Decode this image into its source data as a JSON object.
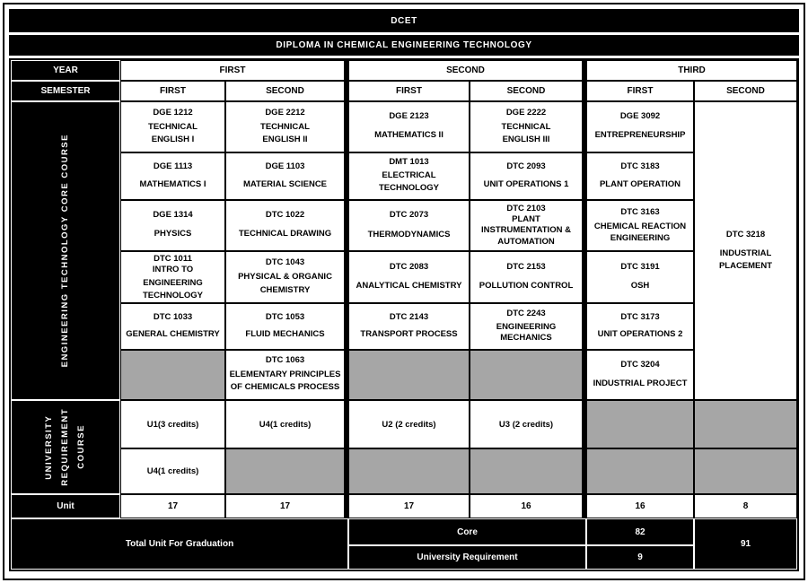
{
  "titles": {
    "code": "DCET",
    "program": "DIPLOMA IN CHEMICAL ENGINEERING TECHNOLOGY"
  },
  "headers": {
    "year_label": "YEAR",
    "semester_label": "SEMESTER",
    "years": [
      "FIRST",
      "SECOND",
      "THIRD"
    ],
    "semesters": [
      "FIRST",
      "SECOND",
      "FIRST",
      "SECOND",
      "FIRST",
      "SECOND"
    ]
  },
  "sections": {
    "core_label": "ENGINEERING TECHNOLOGY CORE COURSE",
    "university_label": "UNIVERSITY\nREQUIREMENT\nCOURSE"
  },
  "courses": {
    "y1s1": [
      {
        "code": "DGE 1212",
        "name": "TECHNICAL\nENGLISH I"
      },
      {
        "code": "DGE 1113",
        "name": "MATHEMATICS I"
      },
      {
        "code": "DGE 1314",
        "name": "PHYSICS"
      },
      {
        "code": "DTC 1011",
        "name": "INTRO TO\nENGINEERING\nTECHNOLOGY"
      },
      {
        "code": "DTC 1033",
        "name": "GENERAL CHEMISTRY"
      }
    ],
    "y1s2": [
      {
        "code": "DGE 2212",
        "name": "TECHNICAL\nENGLISH II"
      },
      {
        "code": "DGE 1103",
        "name": "MATERIAL SCIENCE"
      },
      {
        "code": "DTC 1022",
        "name": "TECHNICAL DRAWING"
      },
      {
        "code": "DTC 1043",
        "name": "PHYSICAL & ORGANIC\nCHEMISTRY"
      },
      {
        "code": "DTC 1053",
        "name": "FLUID MECHANICS"
      },
      {
        "code": "DTC 1063",
        "name": "ELEMENTARY PRINCIPLES\nOF CHEMICALS PROCESS"
      }
    ],
    "y2s1": [
      {
        "code": "DGE 2123",
        "name": "MATHEMATICS II"
      },
      {
        "code": "DMT 1013",
        "name": "ELECTRICAL\nTECHNOLOGY"
      },
      {
        "code": "DTC 2073",
        "name": "THERMODYNAMICS"
      },
      {
        "code": "DTC 2083",
        "name": "ANALYTICAL CHEMISTRY"
      },
      {
        "code": "DTC 2143",
        "name": "TRANSPORT PROCESS"
      }
    ],
    "y2s2": [
      {
        "code": "DGE 2222",
        "name": "TECHNICAL\nENGLISH III"
      },
      {
        "code": "DTC 2093",
        "name": "UNIT OPERATIONS 1"
      },
      {
        "code": "DTC 2103",
        "name": "PLANT\nINSTRUMENTATION &\nAUTOMATION"
      },
      {
        "code": "DTC 2153",
        "name": "POLLUTION CONTROL"
      },
      {
        "code": "DTC 2243",
        "name": "ENGINEERING\nMECHANICS"
      }
    ],
    "y3s1": [
      {
        "code": "DGE 3092",
        "name": "ENTREPRENEURSHIP"
      },
      {
        "code": "DTC 3183",
        "name": "PLANT OPERATION"
      },
      {
        "code": "DTC 3163",
        "name": "CHEMICAL REACTION\nENGINEERING"
      },
      {
        "code": "DTC 3191",
        "name": "OSH"
      },
      {
        "code": "DTC 3173",
        "name": "UNIT OPERATIONS 2"
      },
      {
        "code": "DTC 3204",
        "name": "INDUSTRIAL PROJECT"
      }
    ],
    "y3s2": {
      "code": "DTC 3218",
      "name": "INDUSTRIAL\nPLACEMENT"
    }
  },
  "university_courses": {
    "y1s1": [
      "U1(3 credits)",
      "U4(1 credits)"
    ],
    "y1s2": [
      "U4(1 credits)"
    ],
    "y2s1": [
      "U2 (2 credits)"
    ],
    "y2s2": [
      "U3 (2 credits)"
    ]
  },
  "units": {
    "label": "Unit",
    "values": [
      "17",
      "17",
      "17",
      "16",
      "16",
      "8"
    ]
  },
  "totals": {
    "graduation_label": "Total Unit For Graduation",
    "core_label": "Core",
    "core_value": "82",
    "university_label": "University Requirement",
    "university_value": "9",
    "total_value": "91"
  },
  "colors": {
    "header_bg": "#000000",
    "empty_cell_gray": "#a6a6a6",
    "cell_bg": "#ffffff"
  }
}
